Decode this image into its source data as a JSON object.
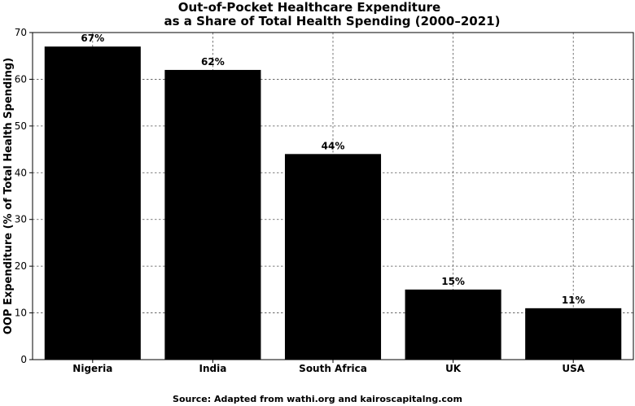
{
  "chart_data": {
    "type": "bar",
    "title_line1": "Out-of-Pocket Healthcare Expenditure",
    "title_line2": "as a Share of Total Health Spending (2000–2021)",
    "xlabel": "",
    "ylabel": "OOP Expenditure (% of Total Health Spending)",
    "categories": [
      "Nigeria",
      "India",
      "South Africa",
      "UK",
      "USA"
    ],
    "values": [
      67,
      62,
      44,
      15,
      11
    ],
    "value_labels": [
      "67%",
      "62%",
      "44%",
      "15%",
      "11%"
    ],
    "ylim": [
      0,
      70
    ],
    "yticks": [
      0,
      10,
      20,
      30,
      40,
      50,
      60,
      70
    ],
    "grid": true,
    "bar_color": "#000000",
    "source": "Source: Adapted from wathi.org and kairoscapitalng.com"
  }
}
